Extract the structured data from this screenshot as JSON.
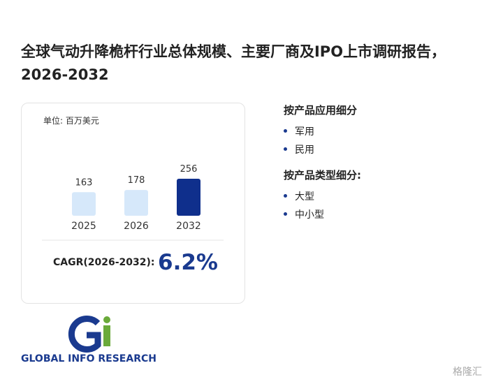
{
  "title": "全球气动升降桅杆行业总体规模、主要厂商及IPO上市调研报告，2026-2032",
  "card": {
    "unit": "单位: 百万美元",
    "chart": {
      "type": "bar",
      "categories": [
        "2025",
        "2026",
        "2032"
      ],
      "values": [
        163,
        178,
        256
      ],
      "colors": [
        "#d6e8fa",
        "#d6e8fa",
        "#0f2f8c"
      ]
    },
    "cagr_label": "CAGR(2026-2032):",
    "cagr_value": "6.2%"
  },
  "segments": [
    {
      "heading": "按产品应用细分",
      "items": [
        "军用",
        "民用"
      ]
    },
    {
      "heading": "按产品类型细分:",
      "items": [
        "大型",
        "中小型"
      ]
    }
  ],
  "logo": "GLOBAL INFO RESEARCH",
  "source": "格隆汇"
}
